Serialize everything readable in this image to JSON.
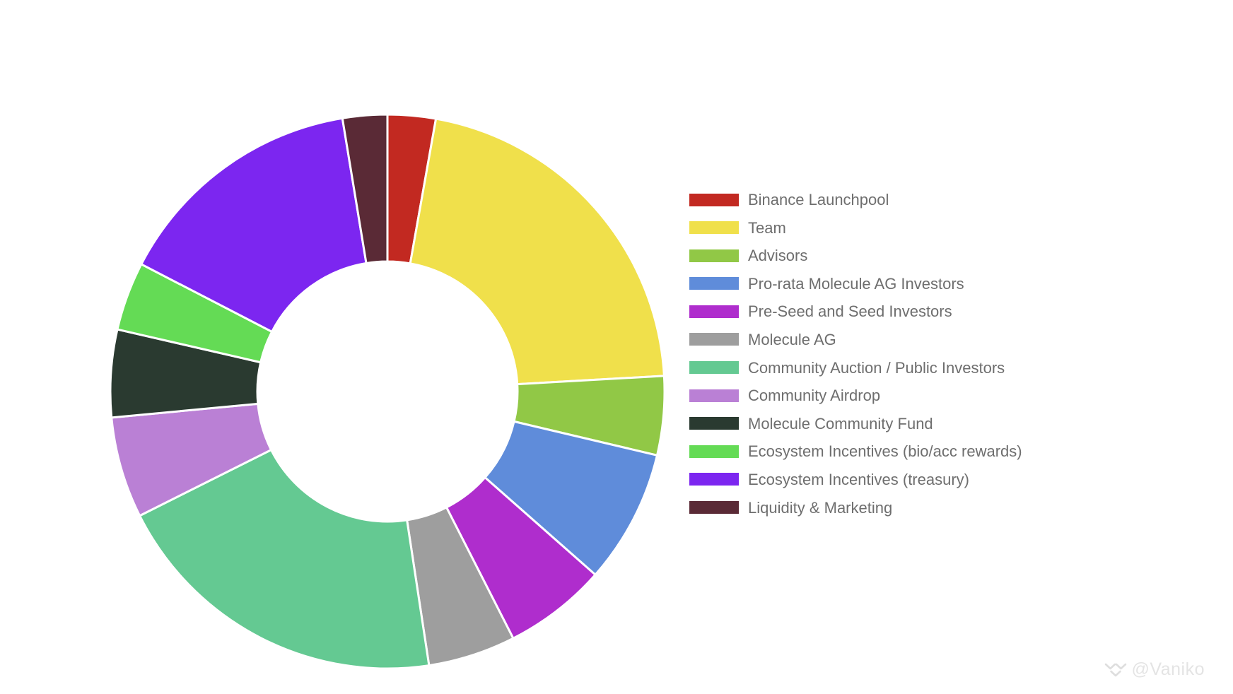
{
  "page": {
    "background": "#ffffff"
  },
  "chart_data": {
    "type": "pie",
    "subtype": "donut",
    "title": "",
    "legend_position": "right",
    "direction": "clockwise",
    "start_angle_deg": 0,
    "inner_radius_ratio": 0.47,
    "data_labels_shown": false,
    "note": "No numeric labels are rendered in the image; values are percentages estimated from measured arc angles.",
    "categories": [
      "Binance Launchpool",
      "Team",
      "Advisors",
      "Pro-rata Molecule AG Investors",
      "Pre-Seed and Seed Investors",
      "Molecule AG",
      "Community Auction / Public Investors",
      "Community Airdrop",
      "Molecule Community Fund",
      "Ecosystem Incentives (bio/acc rewards)",
      "Ecosystem Incentives (treasury)",
      "Liquidity & Marketing"
    ],
    "values": [
      2.8,
      21.3,
      4.6,
      7.8,
      6.0,
      5.1,
      20.0,
      5.9,
      5.1,
      4.0,
      14.8,
      2.6
    ],
    "colors": [
      "#c22921",
      "#f0e04b",
      "#91c846",
      "#5f8cda",
      "#af2dcd",
      "#9e9e9e",
      "#64c992",
      "#ba80d5",
      "#2a3a30",
      "#64db55",
      "#7c26f0",
      "#5a2a36"
    ]
  },
  "watermark": {
    "handle": "@Vaniko",
    "color": "#e4e4e4"
  }
}
